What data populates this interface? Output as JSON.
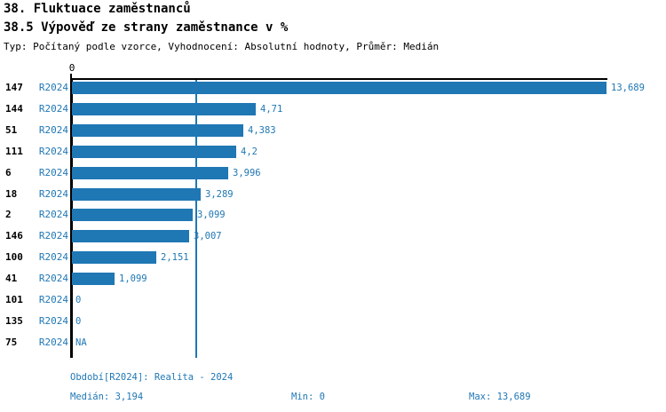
{
  "header": {
    "title": "38. Fluktuace zaměstnanců",
    "subtitle": "38.5 Výpověď ze strany zaměstnance v %",
    "meta": "Typ: Počítaný podle vzorce, Vyhodnocení: Absolutní hodnoty, Průměr: Medián"
  },
  "chart_data": {
    "type": "bar",
    "orientation": "horizontal",
    "title": "38. Fluktuace zaměstnanců",
    "subtitle": "38.5 Výpověď ze strany zaměstnance v %",
    "annotation": "Typ: Počítaný podle vzorce, Vyhodnocení: Absolutní hodnoty, Průměr: Medián",
    "categories": [
      "147",
      "144",
      "51",
      "111",
      "6",
      "18",
      "2",
      "146",
      "100",
      "41",
      "101",
      "135",
      "75"
    ],
    "series": [
      {
        "name": "R2024",
        "values": [
          13.689,
          4.71,
          4.383,
          4.2,
          3.996,
          3.289,
          3.099,
          3.007,
          2.151,
          1.099,
          0,
          0,
          null
        ]
      }
    ],
    "value_labels": [
      "13,689",
      "4,71",
      "4,383",
      "4,2",
      "3,996",
      "3,289",
      "3,099",
      "3,007",
      "2,151",
      "1,099",
      "0",
      "0",
      "NA"
    ],
    "xlim": [
      0,
      13.689
    ],
    "x_ticks": [
      {
        "value": 0,
        "label": "0"
      }
    ],
    "median": 3.194,
    "grid": false,
    "legend": "none",
    "colors": {
      "bar": "#1f77b4",
      "median_line": "#1f77b4",
      "blue_text": "#1f77b4",
      "axis": "#000000"
    }
  },
  "footer": {
    "period": "Období[R2024]: Realita - 2024",
    "median": "Medián: 3,194",
    "min": "Min: 0",
    "max": "Max: 13,689"
  }
}
